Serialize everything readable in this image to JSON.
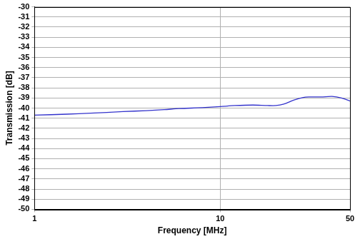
{
  "chart_data": {
    "type": "line",
    "x_label": "Frequency [MHz]",
    "y_label": "Transmission [dB]",
    "log": "x",
    "grid": true,
    "xlim": [
      1,
      50
    ],
    "xticks": [
      1,
      10,
      50
    ],
    "ylim": [
      -50,
      -30
    ],
    "yticks": [
      -50,
      -49,
      -48,
      -47,
      -46,
      -45,
      -44,
      -43,
      -42,
      -41,
      -40,
      -39,
      -38,
      -37,
      -36,
      -35,
      -34,
      -33,
      -32,
      -31,
      -30
    ],
    "series": [
      {
        "color": "#3333cc",
        "line_style": "solid",
        "x": [
          1,
          1.5,
          2,
          3,
          4,
          5,
          6,
          7,
          8,
          10,
          12,
          15,
          18,
          20,
          22,
          25,
          28,
          30,
          35,
          40,
          45,
          50
        ],
        "values": [
          -40.7,
          -40.6,
          -40.5,
          -40.35,
          -40.25,
          -40.15,
          -40.05,
          -40.0,
          -39.95,
          -39.85,
          -39.75,
          -39.7,
          -39.75,
          -39.75,
          -39.6,
          -39.2,
          -38.95,
          -38.9,
          -38.9,
          -38.85,
          -39.0,
          -39.3
        ]
      }
    ]
  }
}
